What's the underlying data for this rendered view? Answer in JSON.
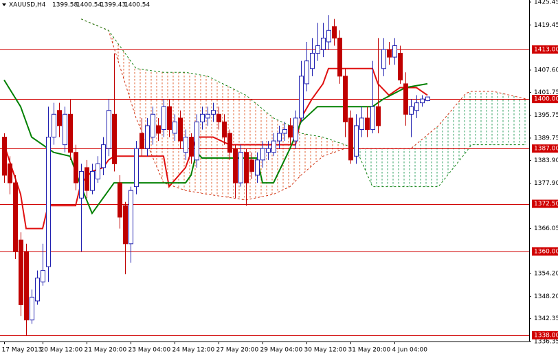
{
  "chart_data": {
    "type": "candlestick",
    "symbol": "XAUUSD,H4",
    "x": [
      0,
      1,
      2,
      3,
      4,
      5,
      6,
      7,
      8,
      9,
      10,
      11,
      12,
      13,
      14,
      15,
      16,
      17,
      18,
      19,
      20,
      21,
      22,
      23,
      24,
      25,
      26,
      27,
      28,
      29,
      30,
      31,
      32,
      33,
      34,
      35,
      36,
      37,
      38,
      39,
      40,
      41,
      42,
      43,
      44,
      45,
      46,
      47,
      48,
      49,
      50,
      51,
      52,
      53,
      54,
      55,
      56,
      57,
      58,
      59,
      60,
      61,
      62,
      63,
      64,
      65,
      66,
      67,
      68,
      69,
      70,
      71,
      72,
      73,
      74,
      75,
      76,
      77
    ],
    "open": [
      1390,
      1383,
      1378,
      1363,
      1360,
      1342,
      1347,
      1352,
      1356,
      1390,
      1397,
      1388,
      1396,
      1386,
      1374,
      1382,
      1376,
      1379,
      1382,
      1387,
      1396,
      1378,
      1372,
      1362,
      1377,
      1391,
      1387,
      1390,
      1393,
      1392,
      1398,
      1391,
      1395,
      1386,
      1390,
      1384,
      1394,
      1395,
      1396,
      1396,
      1394,
      1391,
      1387,
      1378,
      1386,
      1384,
      1380,
      1384,
      1386,
      1386,
      1389,
      1391,
      1393,
      1389,
      1395,
      1404,
      1408,
      1412,
      1413,
      1415,
      1419,
      1416,
      1406,
      1395,
      1385,
      1392,
      1395,
      1392,
      1398,
      1408,
      1413,
      1411,
      1412,
      1404,
      1396,
      1397,
      1399,
      1399.58
    ],
    "high": [
      1391,
      1385,
      1380,
      1365,
      1362,
      1350,
      1355,
      1362,
      1398,
      1399,
      1399,
      1398,
      1400,
      1388,
      1383,
      1384,
      1383,
      1385,
      1390,
      1400,
      1412,
      1380,
      1373,
      1377,
      1389,
      1395,
      1395,
      1398,
      1395,
      1400,
      1400,
      1396,
      1397,
      1392,
      1391,
      1396,
      1398,
      1398,
      1399,
      1398,
      1396,
      1392,
      1388,
      1388,
      1387,
      1386,
      1386,
      1389,
      1389,
      1391,
      1393,
      1394,
      1395,
      1397,
      1410,
      1415,
      1416,
      1420,
      1420,
      1422,
      1421,
      1418,
      1408,
      1397,
      1396,
      1398,
      1398,
      1410,
      1416,
      1416,
      1415,
      1416,
      1414,
      1407,
      1400,
      1401,
      1401,
      1400.54
    ],
    "low": [
      1378,
      1375,
      1358,
      1343,
      1338,
      1341,
      1346,
      1351,
      1352,
      1388,
      1390,
      1386,
      1384,
      1376,
      1360,
      1374,
      1375,
      1378,
      1380,
      1385,
      1381,
      1366,
      1354,
      1357,
      1375,
      1385,
      1385,
      1388,
      1389,
      1390,
      1390,
      1389,
      1387,
      1384,
      1383,
      1382,
      1392,
      1393,
      1394,
      1392,
      1388,
      1384,
      1374,
      1377,
      1372,
      1379,
      1378,
      1382,
      1384,
      1385,
      1387,
      1389,
      1388,
      1387,
      1394,
      1402,
      1406,
      1410,
      1411,
      1413,
      1414,
      1404,
      1390,
      1383,
      1383,
      1390,
      1390,
      1391,
      1391,
      1406,
      1409,
      1409,
      1404,
      1393,
      1390,
      1395,
      1398,
      1399.43
    ],
    "close": [
      1380,
      1378,
      1360,
      1346,
      1342,
      1348,
      1353,
      1355,
      1390,
      1396,
      1393,
      1396,
      1386,
      1378,
      1381,
      1376,
      1381,
      1383,
      1388,
      1397,
      1383,
      1369,
      1362,
      1376,
      1387,
      1387,
      1393,
      1396,
      1391,
      1398,
      1392,
      1394,
      1389,
      1390,
      1385,
      1394,
      1396,
      1396,
      1397,
      1394,
      1390,
      1386,
      1378,
      1386,
      1378,
      1381,
      1384,
      1387,
      1387,
      1389,
      1391,
      1392,
      1390,
      1395,
      1406,
      1410,
      1412,
      1414,
      1416,
      1418,
      1416,
      1406,
      1394,
      1384,
      1393,
      1395,
      1392,
      1398,
      1393,
      1413,
      1411,
      1414,
      1405,
      1396,
      1398,
      1399,
      1400,
      1400.54
    ],
    "up_color": "#2020b0",
    "down_color": "#c00000",
    "lines": [
      {
        "color": "#e01010",
        "x": [
          0,
          3,
          4,
          7,
          8,
          13,
          14,
          16,
          18,
          19,
          20,
          29,
          30,
          33,
          35,
          38,
          41,
          43,
          53,
          54,
          56,
          58,
          59,
          67,
          68,
          70,
          72,
          75,
          77
        ],
        "values": [
          1388,
          1375,
          1366,
          1366,
          1372,
          1372,
          1378,
          1381,
          1382,
          1384,
          1385,
          1385,
          1377,
          1382,
          1390,
          1390,
          1388,
          1388,
          1388,
          1395,
          1400,
          1404,
          1408,
          1408,
          1404,
          1401,
          1403,
          1403,
          1401
        ]
      },
      {
        "color": "#008000",
        "x": [
          0,
          3,
          5,
          9,
          12,
          14,
          16,
          20,
          33,
          34,
          35,
          36,
          46,
          47,
          49,
          52,
          54,
          57,
          67,
          69,
          73,
          77
        ],
        "values": [
          1405,
          1398,
          1390,
          1386,
          1385,
          1377,
          1370,
          1378,
          1378,
          1380,
          1386,
          1384.5,
          1384.5,
          1378,
          1378,
          1387,
          1394,
          1398,
          1398,
          1400,
          1403,
          1404
        ]
      }
    ],
    "cloud": {
      "x": [
        14,
        19,
        24,
        29,
        33,
        37,
        44,
        49,
        52,
        54,
        58,
        62,
        64,
        67,
        69,
        74,
        79,
        84,
        85,
        89,
        95
      ],
      "span_a": [
        1421,
        1418,
        1395,
        1378,
        1376,
        1375,
        1373.5,
        1375,
        1377,
        1380,
        1385,
        1387,
        1387,
        1387,
        1387,
        1387,
        1393,
        1401.5,
        1402,
        1402,
        1400
      ],
      "span_b": [
        1421,
        1418,
        1408,
        1407,
        1407,
        1406,
        1401,
        1395,
        1393,
        1391,
        1390,
        1388,
        1387,
        1377,
        1377,
        1377,
        1377,
        1386,
        1388,
        1388,
        1388
      ],
      "span_a_color": "#d03010",
      "span_b_color": "#108010",
      "bear_fill": "#e06030",
      "bull_fill": "#30a060"
    },
    "levels": [
      {
        "value": 1413,
        "label": "1413.00"
      },
      {
        "value": 1400,
        "label": "1400.00"
      },
      {
        "value": 1387,
        "label": "1387.00"
      },
      {
        "value": 1372.5,
        "label": "1372.50"
      },
      {
        "value": 1360,
        "label": "1360.00"
      },
      {
        "value": 1338,
        "label": "1338.00"
      }
    ],
    "level_color": "#d00000",
    "xlim": [
      -0.75,
      95.5
    ],
    "ylim": [
      1336.35,
      1425.45
    ],
    "xticks": [
      {
        "value": 0,
        "label": "17 May 2013"
      },
      {
        "value": 7,
        "label": "20 May 12:00"
      },
      {
        "value": 15,
        "label": "21 May 20:00"
      },
      {
        "value": 23,
        "label": "23 May 04:00"
      },
      {
        "value": 31,
        "label": "24 May 12:00"
      },
      {
        "value": 39,
        "label": "27 May 20:00"
      },
      {
        "value": 47,
        "label": "29 May 04:00"
      },
      {
        "value": 55,
        "label": "30 May 12:00"
      },
      {
        "value": 63,
        "label": "31 May 20:00"
      },
      {
        "value": 71,
        "label": "4 Jun 04:00"
      }
    ],
    "yticks": [
      1425.45,
      1419.45,
      {
        "value": 1407.6,
        "label": "1407.60"
      },
      1401.75,
      1395.75,
      1389.75,
      {
        "value": 1383.9,
        "label": "1383.90"
      },
      {
        "value": 1377.9,
        "label": "1377.90"
      },
      1366.05,
      {
        "value": 1354.2,
        "label": "1354.20"
      },
      {
        "value": 1348.2,
        "label": "1348.20"
      },
      1342.35,
      1336.35
    ]
  }
}
